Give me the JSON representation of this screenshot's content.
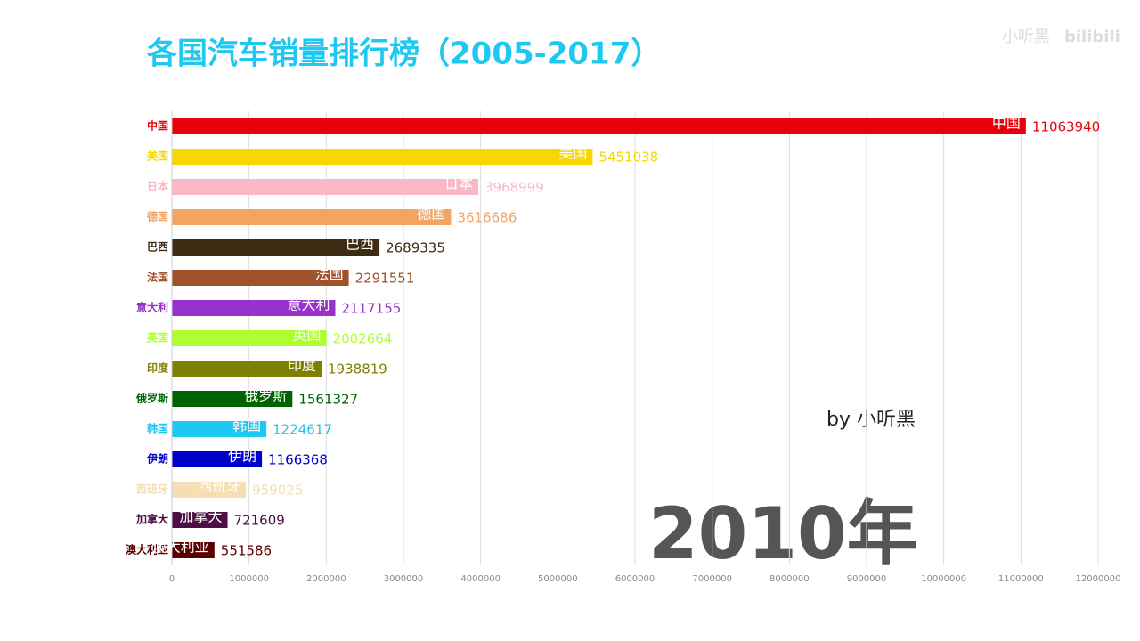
{
  "chart_data": {
    "type": "bar",
    "orientation": "horizontal",
    "title": "各国汽车销量排行榜（2005-2017）",
    "categories": [
      "中国",
      "美国",
      "日本",
      "德国",
      "巴西",
      "法国",
      "意大利",
      "英国",
      "印度",
      "俄罗斯",
      "韩国",
      "伊朗",
      "西班牙",
      "加拿大",
      "澳大利亚"
    ],
    "values": [
      11063940,
      5451038,
      3968999,
      3616686,
      2689335,
      2291551,
      2117155,
      2002664,
      1938819,
      1561327,
      1224617,
      1166368,
      959025,
      721609,
      551586
    ],
    "colors": [
      "#e8000b",
      "#f5d800",
      "#f9b8c4",
      "#f4a460",
      "#3d2b13",
      "#a0522d",
      "#9932cc",
      "#adff2f",
      "#808000",
      "#006400",
      "#1ec8f0",
      "#0000cd",
      "#f5deb3",
      "#4b0f45",
      "#5a0000"
    ],
    "xlim": [
      0,
      12000000
    ],
    "xticks": [
      0,
      1000000,
      2000000,
      3000000,
      4000000,
      5000000,
      6000000,
      7000000,
      8000000,
      9000000,
      10000000,
      11000000,
      12000000
    ],
    "grid": true,
    "annotations": {
      "year": "2010年",
      "author": "by 小听黑",
      "watermark": "小听黑",
      "logo": "bilibili"
    }
  }
}
